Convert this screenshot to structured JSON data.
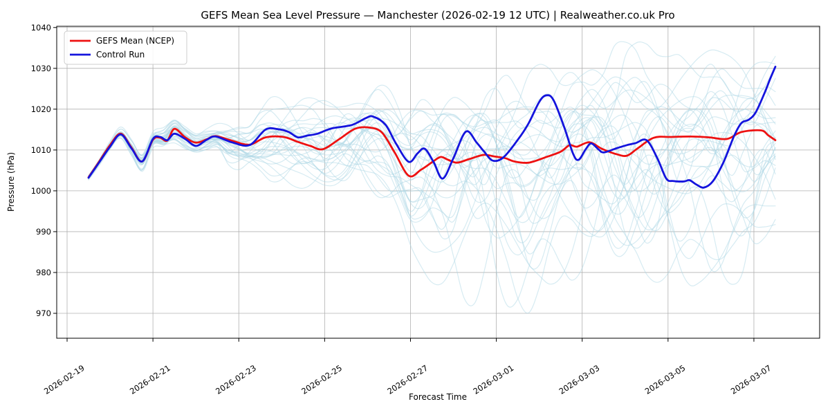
{
  "window": {
    "background": "#ffffff"
  },
  "colors": {
    "mean_line": "#ee1111",
    "control_line": "#1414dd",
    "ensemble_line": "#add8e6",
    "grid": "#b0b0b0",
    "spine": "#000000",
    "legend_border": "#cccccc"
  },
  "legend": {
    "entries": [
      {
        "label": "GEFS Mean (NCEP)",
        "color": "#ee1111"
      },
      {
        "label": "Control Run",
        "color": "#1414dd"
      }
    ]
  },
  "chart_data": {
    "type": "line",
    "title": "GEFS Mean Sea Level Pressure — Manchester (2026-02-19 12 UTC) | Realweather.co.uk Pro",
    "xlabel": "Forecast Time",
    "ylabel": "Pressure (hPa)",
    "x_start": "2026-02-19 12 UTC",
    "x_unit": "hours since forecast start",
    "x_ticks": [
      "2026-02-19",
      "2026-02-21",
      "2026-02-23",
      "2026-02-25",
      "2026-02-27",
      "2026-03-01",
      "2026-03-03",
      "2026-03-05",
      "2026-03-07"
    ],
    "y_ticks": [
      970,
      980,
      990,
      1000,
      1010,
      1020,
      1030,
      1040
    ],
    "ylim": [
      963.9,
      1040.3
    ],
    "grid": true,
    "legend_position": "upper-left",
    "series": [
      {
        "name": "GEFS Mean (NCEP)",
        "color": "#ee1111",
        "width": 2.8,
        "points": [
          [
            0,
            1003.3
          ],
          [
            6,
            1007.2
          ],
          [
            12,
            1011.2
          ],
          [
            18,
            1014.0
          ],
          [
            24,
            1010.6
          ],
          [
            30,
            1007.2
          ],
          [
            36,
            1012.5
          ],
          [
            40,
            1013.0
          ],
          [
            44,
            1012.3
          ],
          [
            48,
            1015.2
          ],
          [
            54,
            1013.1
          ],
          [
            60,
            1011.8
          ],
          [
            66,
            1012.6
          ],
          [
            71,
            1013.4
          ],
          [
            80,
            1012.3
          ],
          [
            90,
            1011.3
          ],
          [
            99,
            1013.1
          ],
          [
            109,
            1013.2
          ],
          [
            117,
            1012.0
          ],
          [
            124,
            1011.0
          ],
          [
            131,
            1010.2
          ],
          [
            140,
            1012.6
          ],
          [
            149,
            1015.2
          ],
          [
            157,
            1015.5
          ],
          [
            164,
            1014.3
          ],
          [
            171,
            1009.5
          ],
          [
            179,
            1003.7
          ],
          [
            186,
            1005.2
          ],
          [
            193,
            1007.3
          ],
          [
            197,
            1008.3
          ],
          [
            201,
            1007.6
          ],
          [
            206,
            1006.9
          ],
          [
            213,
            1007.8
          ],
          [
            221,
            1008.8
          ],
          [
            227,
            1008.4
          ],
          [
            233,
            1008.0
          ],
          [
            238,
            1007.2
          ],
          [
            246,
            1006.9
          ],
          [
            256,
            1008.3
          ],
          [
            264,
            1009.6
          ],
          [
            269,
            1011.2
          ],
          [
            273,
            1010.8
          ],
          [
            280,
            1011.9
          ],
          [
            287,
            1010.3
          ],
          [
            295,
            1009.0
          ],
          [
            301,
            1008.6
          ],
          [
            307,
            1010.4
          ],
          [
            316,
            1013.0
          ],
          [
            326,
            1013.2
          ],
          [
            337,
            1013.3
          ],
          [
            347,
            1013.1
          ],
          [
            357,
            1012.7
          ],
          [
            365,
            1014.4
          ],
          [
            376,
            1014.8
          ],
          [
            380,
            1013.6
          ],
          [
            384,
            1012.4
          ]
        ]
      },
      {
        "name": "Control Run",
        "color": "#1414dd",
        "width": 2.8,
        "points": [
          [
            0,
            1003.2
          ],
          [
            6,
            1007.0
          ],
          [
            12,
            1010.8
          ],
          [
            18,
            1013.8
          ],
          [
            24,
            1010.4
          ],
          [
            30,
            1007.2
          ],
          [
            36,
            1012.7
          ],
          [
            40,
            1013.2
          ],
          [
            44,
            1012.4
          ],
          [
            48,
            1014.0
          ],
          [
            54,
            1012.7
          ],
          [
            60,
            1011.0
          ],
          [
            66,
            1012.5
          ],
          [
            71,
            1013.3
          ],
          [
            80,
            1011.9
          ],
          [
            90,
            1011.2
          ],
          [
            99,
            1015.0
          ],
          [
            106,
            1015.1
          ],
          [
            112,
            1014.4
          ],
          [
            117,
            1013.1
          ],
          [
            122,
            1013.5
          ],
          [
            128,
            1014.0
          ],
          [
            136,
            1015.3
          ],
          [
            147,
            1016.1
          ],
          [
            155,
            1017.8
          ],
          [
            159,
            1018.2
          ],
          [
            166,
            1016.2
          ],
          [
            172,
            1011.5
          ],
          [
            179,
            1007.1
          ],
          [
            184,
            1009.2
          ],
          [
            188,
            1010.3
          ],
          [
            193,
            1007.0
          ],
          [
            198,
            1003.0
          ],
          [
            204,
            1008.0
          ],
          [
            211,
            1014.5
          ],
          [
            217,
            1011.8
          ],
          [
            221,
            1009.7
          ],
          [
            226,
            1007.4
          ],
          [
            232,
            1008.2
          ],
          [
            240,
            1012.5
          ],
          [
            246,
            1016.5
          ],
          [
            252,
            1021.8
          ],
          [
            256,
            1023.4
          ],
          [
            260,
            1022.2
          ],
          [
            266,
            1015.5
          ],
          [
            271,
            1009.0
          ],
          [
            274,
            1007.6
          ],
          [
            278,
            1010.2
          ],
          [
            281,
            1011.6
          ],
          [
            285,
            1010.2
          ],
          [
            288,
            1009.4
          ],
          [
            295,
            1010.4
          ],
          [
            301,
            1011.2
          ],
          [
            306,
            1011.7
          ],
          [
            312,
            1012.4
          ],
          [
            318,
            1008.0
          ],
          [
            323,
            1003.0
          ],
          [
            327,
            1002.4
          ],
          [
            333,
            1002.3
          ],
          [
            336,
            1002.6
          ],
          [
            340,
            1001.5
          ],
          [
            344,
            1000.8
          ],
          [
            349,
            1002.3
          ],
          [
            355,
            1007.0
          ],
          [
            361,
            1013.5
          ],
          [
            365,
            1016.6
          ],
          [
            369,
            1017.4
          ],
          [
            373,
            1019.2
          ],
          [
            378,
            1024.0
          ],
          [
            381,
            1027.3
          ],
          [
            384,
            1030.4
          ]
        ]
      }
    ],
    "ensemble": {
      "name": "GEFS ensemble members",
      "count": 30,
      "color": "#add8e6",
      "opacity": 0.5,
      "width": 1.2,
      "seed": 20260219,
      "step_hours": 6,
      "envelope": [
        [
          0,
          1002.5,
          1004.2
        ],
        [
          12,
          1009.5,
          1012.5
        ],
        [
          18,
          1012.3,
          1015.8
        ],
        [
          24,
          1008.0,
          1013.0
        ],
        [
          30,
          1003.8,
          1009.8
        ],
        [
          36,
          1010.0,
          1015.0
        ],
        [
          48,
          1010.5,
          1018.5
        ],
        [
          60,
          1008.5,
          1014.5
        ],
        [
          72,
          1009.0,
          1017.0
        ],
        [
          80,
          1002.0,
          1018.0
        ],
        [
          90,
          1003.0,
          1017.5
        ],
        [
          100,
          1001.0,
          1023.0
        ],
        [
          112,
          1000.0,
          1024.0
        ],
        [
          124,
          999.0,
          1025.0
        ],
        [
          132,
          998.5,
          1026.0
        ],
        [
          146,
          998.0,
          1029.0
        ],
        [
          160,
          997.0,
          1031.5
        ],
        [
          172,
          990.0,
          1030.0
        ],
        [
          179,
          982.0,
          1027.0
        ],
        [
          190,
          977.0,
          1026.0
        ],
        [
          200,
          971.0,
          1025.5
        ],
        [
          211,
          967.0,
          1025.0
        ],
        [
          222,
          970.0,
          1027.0
        ],
        [
          232,
          969.5,
          1028.5
        ],
        [
          244,
          969.0,
          1030.0
        ],
        [
          252,
          973.0,
          1031.0
        ],
        [
          264,
          977.0,
          1033.0
        ],
        [
          276,
          979.0,
          1034.0
        ],
        [
          288,
          977.0,
          1036.3
        ],
        [
          300,
          976.5,
          1036.5
        ],
        [
          312,
          977.0,
          1036.0
        ],
        [
          324,
          978.0,
          1035.5
        ],
        [
          336,
          976.0,
          1034.5
        ],
        [
          348,
          977.0,
          1035.8
        ],
        [
          360,
          977.0,
          1034.0
        ],
        [
          372,
          978.0,
          1033.0
        ],
        [
          384,
          985.0,
          1033.0
        ]
      ]
    }
  }
}
